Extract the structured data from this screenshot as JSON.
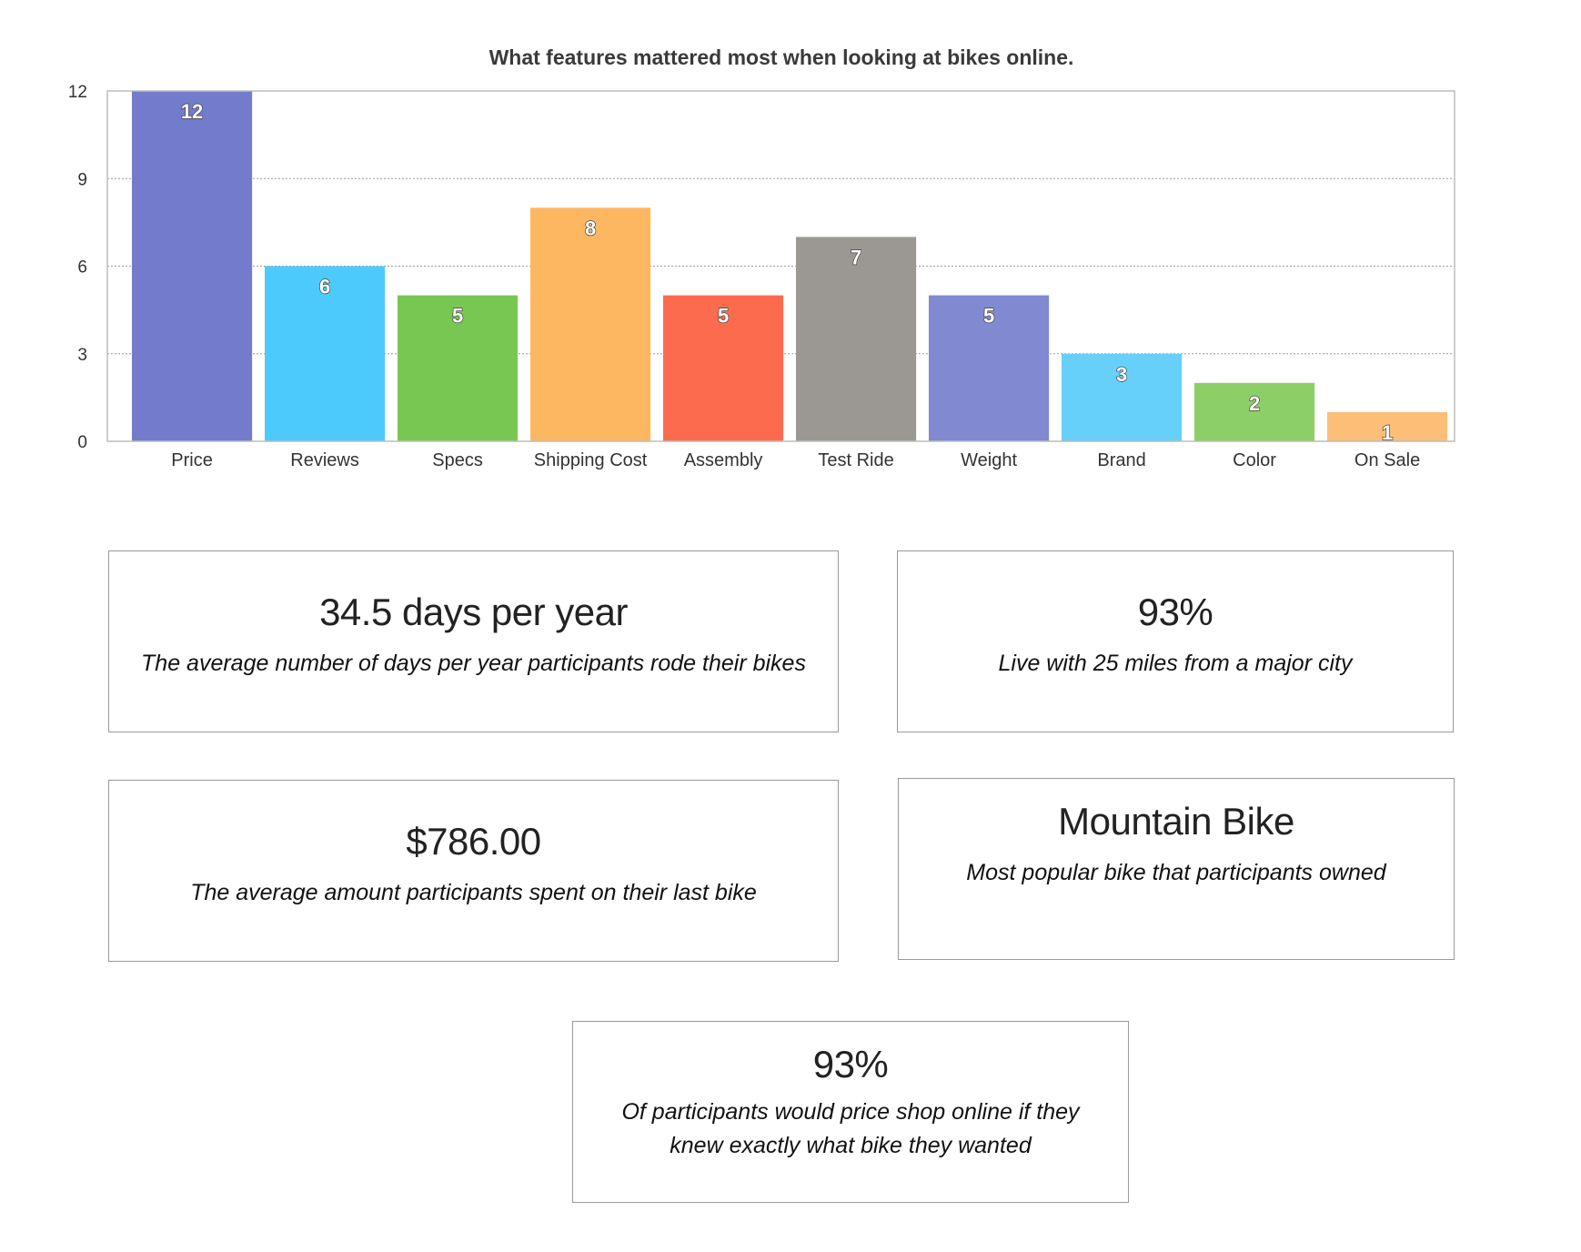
{
  "chart_data": {
    "type": "bar",
    "title": "What features mattered most when looking at bikes online.",
    "categories": [
      "Price",
      "Reviews",
      "Specs",
      "Shipping Cost",
      "Assembly",
      "Test Ride",
      "Weight",
      "Brand",
      "Color",
      "On Sale"
    ],
    "values": [
      12,
      6,
      5,
      8,
      5,
      7,
      5,
      3,
      2,
      1
    ],
    "colors": [
      "#727bcc",
      "#4dcafc",
      "#79c753",
      "#fdb761",
      "#fd6b4f",
      "#9b9893",
      "#8189d0",
      "#66d0fa",
      "#8dcf67",
      "#fdbe78"
    ],
    "ylim": [
      0,
      12
    ],
    "yticks": [
      0,
      3,
      6,
      9,
      12
    ],
    "grid": true,
    "data_labels": true
  },
  "stats": {
    "days": {
      "value": "34.5 days per year",
      "desc": "The average number of days per year participants rode their bikes"
    },
    "city": {
      "value": "93%",
      "desc": "Live with 25 miles from a major city"
    },
    "spend": {
      "value": "$786.00",
      "desc": "The average amount participants spent on their last bike"
    },
    "bike": {
      "value": "Mountain Bike",
      "desc": "Most popular bike that participants owned"
    },
    "shop": {
      "value": "93%",
      "desc_line1": "Of participants would price shop online if they",
      "desc_line2": "knew exactly what bike they wanted"
    }
  }
}
